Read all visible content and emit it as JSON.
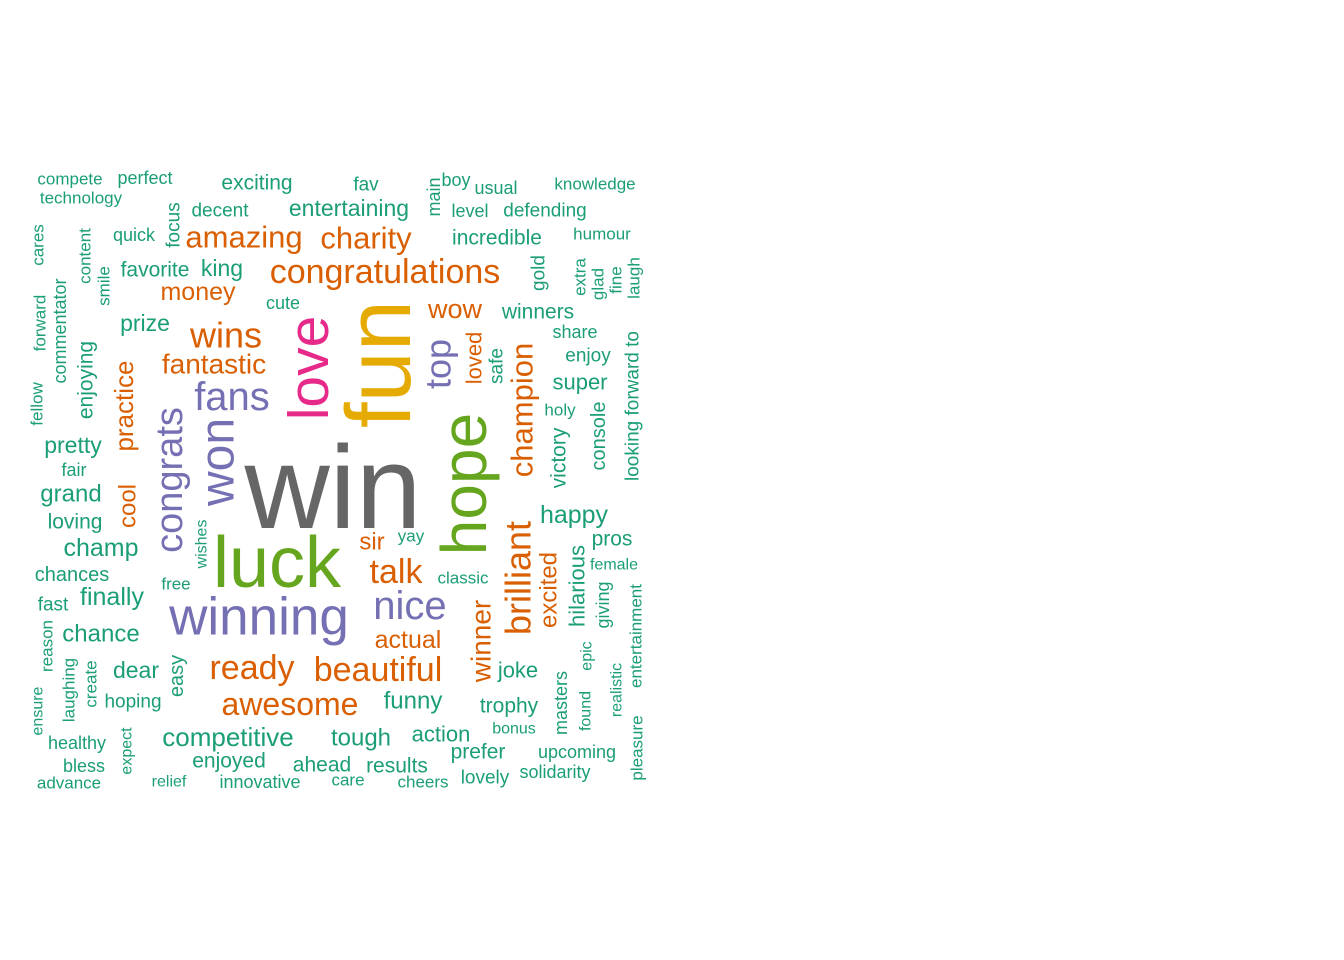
{
  "palette": {
    "grey": "#666666",
    "green": "#66a61e",
    "gold": "#e6ab02",
    "pink": "#e7298a",
    "purple": "#7570b3",
    "orange": "#d95f02",
    "teal": "#1b9e77"
  },
  "words": [
    {
      "text": "win",
      "color": "grey"
    },
    {
      "text": "luck",
      "color": "green"
    },
    {
      "text": "hope",
      "color": "green"
    },
    {
      "text": "fun",
      "color": "gold"
    },
    {
      "text": "love",
      "color": "pink"
    },
    {
      "text": "winning",
      "color": "purple"
    },
    {
      "text": "won",
      "color": "purple"
    },
    {
      "text": "congrats",
      "color": "purple"
    },
    {
      "text": "fans",
      "color": "purple"
    },
    {
      "text": "nice",
      "color": "purple"
    },
    {
      "text": "top",
      "color": "purple"
    },
    {
      "text": "congratulations",
      "color": "orange"
    },
    {
      "text": "wins",
      "color": "orange"
    },
    {
      "text": "brilliant",
      "color": "orange"
    },
    {
      "text": "champion",
      "color": "orange"
    },
    {
      "text": "amazing",
      "color": "orange"
    },
    {
      "text": "charity",
      "color": "orange"
    },
    {
      "text": "ready",
      "color": "orange"
    },
    {
      "text": "beautiful",
      "color": "orange"
    },
    {
      "text": "talk",
      "color": "orange"
    },
    {
      "text": "awesome",
      "color": "orange"
    },
    {
      "text": "winner",
      "color": "orange"
    },
    {
      "text": "practice",
      "color": "orange"
    },
    {
      "text": "fantastic",
      "color": "orange"
    },
    {
      "text": "money",
      "color": "orange"
    },
    {
      "text": "wow",
      "color": "orange"
    },
    {
      "text": "excited",
      "color": "orange"
    },
    {
      "text": "actual",
      "color": "orange"
    },
    {
      "text": "sir",
      "color": "orange"
    },
    {
      "text": "cool",
      "color": "orange"
    },
    {
      "text": "loved",
      "color": "orange"
    },
    {
      "text": "compete",
      "color": "teal"
    },
    {
      "text": "perfect",
      "color": "teal"
    },
    {
      "text": "technology",
      "color": "teal"
    },
    {
      "text": "exciting",
      "color": "teal"
    },
    {
      "text": "fav",
      "color": "teal"
    },
    {
      "text": "main",
      "color": "teal"
    },
    {
      "text": "boy",
      "color": "teal"
    },
    {
      "text": "usual",
      "color": "teal"
    },
    {
      "text": "knowledge",
      "color": "teal"
    },
    {
      "text": "decent",
      "color": "teal"
    },
    {
      "text": "entertaining",
      "color": "teal"
    },
    {
      "text": "level",
      "color": "teal"
    },
    {
      "text": "defending",
      "color": "teal"
    },
    {
      "text": "focus",
      "color": "teal"
    },
    {
      "text": "quick",
      "color": "teal"
    },
    {
      "text": "incredible",
      "color": "teal"
    },
    {
      "text": "humour",
      "color": "teal"
    },
    {
      "text": "cares",
      "color": "teal"
    },
    {
      "text": "content",
      "color": "teal"
    },
    {
      "text": "favorite",
      "color": "teal"
    },
    {
      "text": "king",
      "color": "teal"
    },
    {
      "text": "gold",
      "color": "teal"
    },
    {
      "text": "extra",
      "color": "teal"
    },
    {
      "text": "glad",
      "color": "teal"
    },
    {
      "text": "fine",
      "color": "teal"
    },
    {
      "text": "laugh",
      "color": "teal"
    },
    {
      "text": "commentator",
      "color": "teal"
    },
    {
      "text": "smile",
      "color": "teal"
    },
    {
      "text": "forward",
      "color": "teal"
    },
    {
      "text": "cute",
      "color": "teal"
    },
    {
      "text": "winners",
      "color": "teal"
    },
    {
      "text": "prize",
      "color": "teal"
    },
    {
      "text": "share",
      "color": "teal"
    },
    {
      "text": "looking forward to",
      "color": "teal"
    },
    {
      "text": "enjoying",
      "color": "teal"
    },
    {
      "text": "safe",
      "color": "teal"
    },
    {
      "text": "enjoy",
      "color": "teal"
    },
    {
      "text": "super",
      "color": "teal"
    },
    {
      "text": "fellow",
      "color": "teal"
    },
    {
      "text": "holy",
      "color": "teal"
    },
    {
      "text": "pretty",
      "color": "teal"
    },
    {
      "text": "console",
      "color": "teal"
    },
    {
      "text": "victory",
      "color": "teal"
    },
    {
      "text": "fair",
      "color": "teal"
    },
    {
      "text": "grand",
      "color": "teal"
    },
    {
      "text": "happy",
      "color": "teal"
    },
    {
      "text": "loving",
      "color": "teal"
    },
    {
      "text": "wishes",
      "color": "teal"
    },
    {
      "text": "yay",
      "color": "teal"
    },
    {
      "text": "champ",
      "color": "teal"
    },
    {
      "text": "pros",
      "color": "teal"
    },
    {
      "text": "chances",
      "color": "teal"
    },
    {
      "text": "free",
      "color": "teal"
    },
    {
      "text": "classic",
      "color": "teal"
    },
    {
      "text": "female",
      "color": "teal"
    },
    {
      "text": "finally",
      "color": "teal"
    },
    {
      "text": "hilarious",
      "color": "teal"
    },
    {
      "text": "fast",
      "color": "teal"
    },
    {
      "text": "giving",
      "color": "teal"
    },
    {
      "text": "reason",
      "color": "teal"
    },
    {
      "text": "chance",
      "color": "teal"
    },
    {
      "text": "entertainment",
      "color": "teal"
    },
    {
      "text": "epic",
      "color": "teal"
    },
    {
      "text": "dear",
      "color": "teal"
    },
    {
      "text": "easy",
      "color": "teal"
    },
    {
      "text": "joke",
      "color": "teal"
    },
    {
      "text": "laughing",
      "color": "teal"
    },
    {
      "text": "create",
      "color": "teal"
    },
    {
      "text": "funny",
      "color": "teal"
    },
    {
      "text": "realistic",
      "color": "teal"
    },
    {
      "text": "hoping",
      "color": "teal"
    },
    {
      "text": "masters",
      "color": "teal"
    },
    {
      "text": "found",
      "color": "teal"
    },
    {
      "text": "trophy",
      "color": "teal"
    },
    {
      "text": "ensure",
      "color": "teal"
    },
    {
      "text": "bonus",
      "color": "teal"
    },
    {
      "text": "competitive",
      "color": "teal"
    },
    {
      "text": "tough",
      "color": "teal"
    },
    {
      "text": "action",
      "color": "teal"
    },
    {
      "text": "expect",
      "color": "teal"
    },
    {
      "text": "healthy",
      "color": "teal"
    },
    {
      "text": "prefer",
      "color": "teal"
    },
    {
      "text": "upcoming",
      "color": "teal"
    },
    {
      "text": "pleasure",
      "color": "teal"
    },
    {
      "text": "enjoyed",
      "color": "teal"
    },
    {
      "text": "ahead",
      "color": "teal"
    },
    {
      "text": "results",
      "color": "teal"
    },
    {
      "text": "bless",
      "color": "teal"
    },
    {
      "text": "solidarity",
      "color": "teal"
    },
    {
      "text": "lovely",
      "color": "teal"
    },
    {
      "text": "advance",
      "color": "teal"
    },
    {
      "text": "relief",
      "color": "teal"
    },
    {
      "text": "innovative",
      "color": "teal"
    },
    {
      "text": "care",
      "color": "teal"
    },
    {
      "text": "cheers",
      "color": "teal"
    }
  ]
}
